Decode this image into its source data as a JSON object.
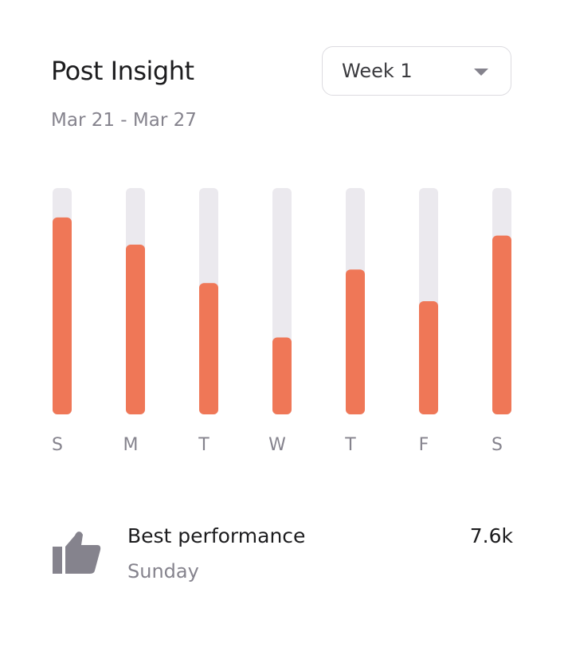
{
  "header": {
    "title": "Post Insight",
    "date_range": "Mar 21 - Mar 27",
    "week_select": "Week 1"
  },
  "colors": {
    "bar": "#ef7757",
    "track": "#ebe9ee",
    "label": "#85838d"
  },
  "chart_data": {
    "type": "bar",
    "categories": [
      "S",
      "M",
      "T",
      "W",
      "T",
      "F",
      "S"
    ],
    "values": [
      0.87,
      0.75,
      0.58,
      0.34,
      0.64,
      0.5,
      0.79
    ],
    "ylim": [
      0,
      1
    ],
    "grid": false
  },
  "summary": {
    "icon": "thumbs-up-icon",
    "label": "Best performance",
    "day": "Sunday",
    "value": "7.6k"
  }
}
